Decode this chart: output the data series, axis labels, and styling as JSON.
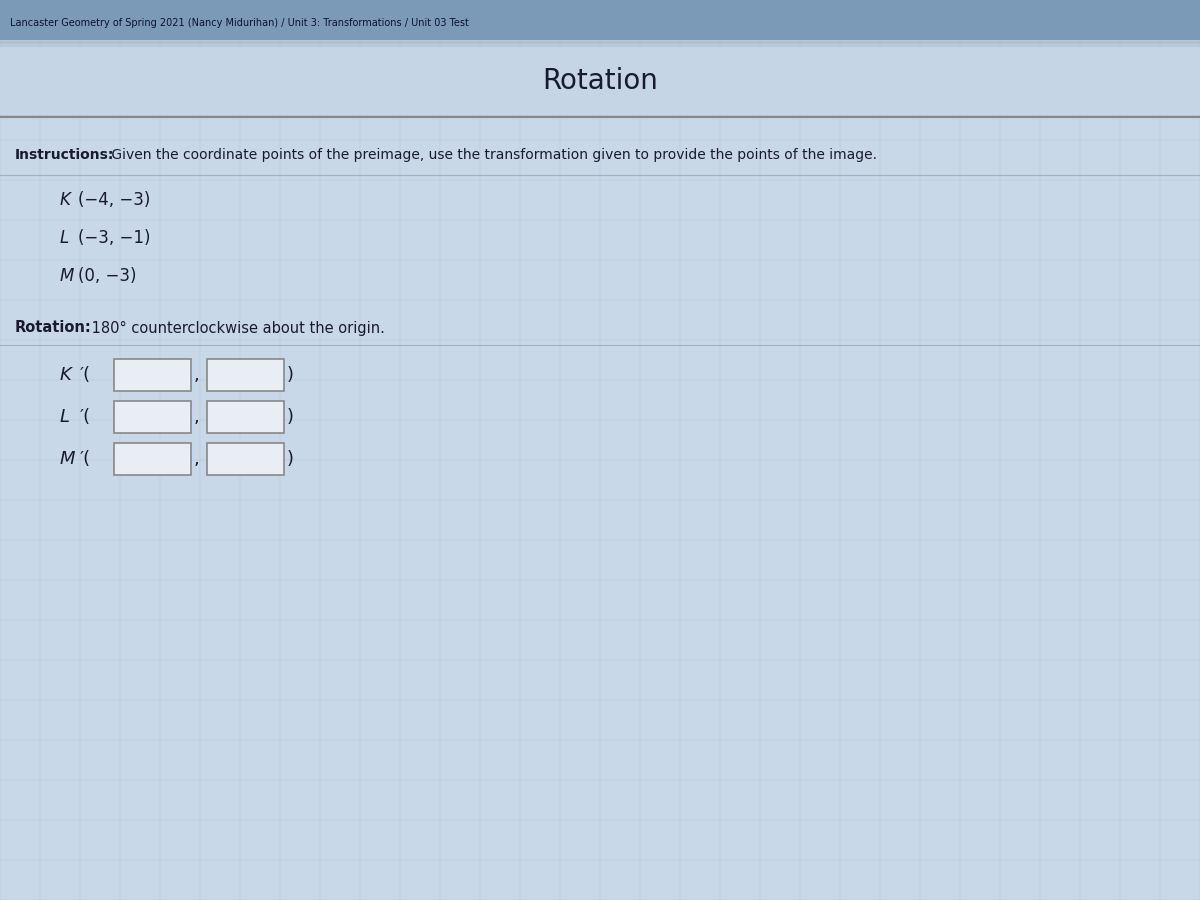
{
  "title": "Rotation",
  "title_fontsize": 20,
  "title_color": "#1a1a2e",
  "header_text": "Lancaster Geometry of Spring 2021 (Nancy Midurihan) / Unit 3: Transformations / Unit 03 Test",
  "instructions_bold": "Instructions:",
  "instructions_rest": " Given the coordinate points of the preimage, use the transformation given to provide the points of the image.",
  "points": [
    "K(−4, −3)",
    "L(−3, −1)",
    "M(0, −3)"
  ],
  "rotation_bold": "Rotation:",
  "rotation_rest": " 180° counterclockwise about the origin.",
  "answer_labels": [
    "K′(",
    "L′(",
    "M′("
  ],
  "bg_color": "#b8c8d8",
  "header_bg": "#7a9ab8",
  "title_bg": "#c5d5e5",
  "content_bg": "#c8d8e8",
  "text_color": "#1a1a2e",
  "box_color": "#e8eef4",
  "box_border": "#888888",
  "line_color": "#888888",
  "grid_line_color": "#9aafbf"
}
